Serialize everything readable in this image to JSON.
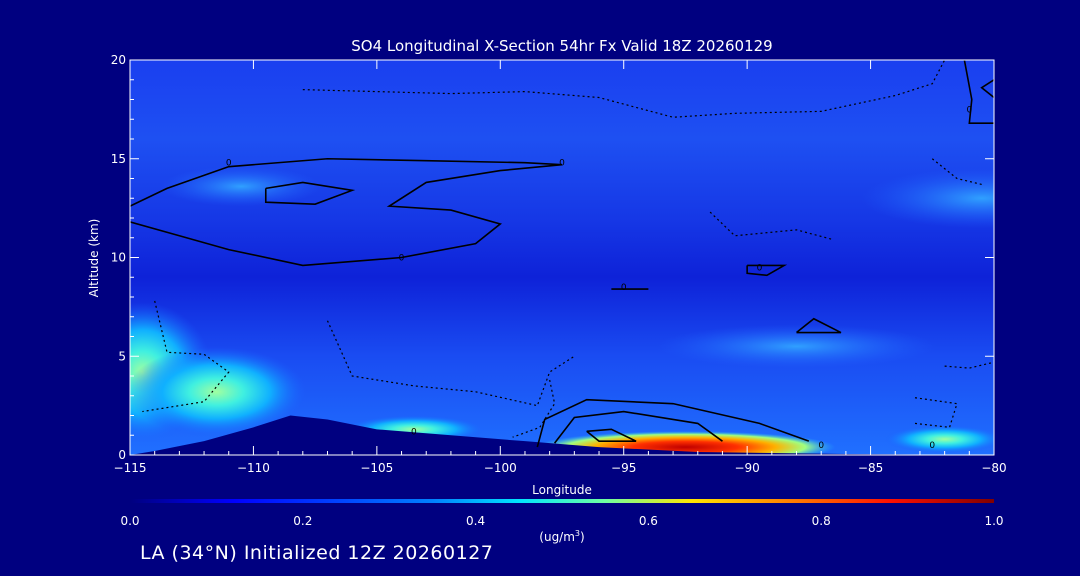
{
  "chart_data": {
    "type": "heatmap",
    "title": "SO4 Longitudinal X-Section 54hr  Fx Valid 18Z 20260129",
    "xlabel": "Longitude",
    "ylabel": "Altitude (km)",
    "xlim": [
      -115,
      -80
    ],
    "ylim": [
      0,
      20
    ],
    "x_ticks": [
      -115,
      -110,
      -105,
      -100,
      -95,
      -90,
      -85,
      -80
    ],
    "x_tick_labels": [
      "−115",
      "−110",
      "−105",
      "−100",
      "−95",
      "−90",
      "−85",
      "−80"
    ],
    "y_ticks": [
      0,
      5,
      10,
      15,
      20
    ],
    "y_tick_labels": [
      "0",
      "5",
      "10",
      "15",
      "20"
    ],
    "colorbar": {
      "min": 0.0,
      "max": 1.0,
      "ticks": [
        0.0,
        0.2,
        0.4,
        0.6,
        0.8,
        1.0
      ],
      "tick_labels": [
        "0.0",
        "0.2",
        "0.4",
        "0.6",
        "0.8",
        "1.0"
      ],
      "unit": "(ug/m",
      "unit_sup": "3",
      "unit_close": ")"
    },
    "grid": false,
    "contour_labels": [
      {
        "lon": -111.0,
        "alt": 14.8,
        "text": "0"
      },
      {
        "lon": -97.5,
        "alt": 14.8,
        "text": "0"
      },
      {
        "lon": -104.0,
        "alt": 10.0,
        "text": "0"
      },
      {
        "lon": -103.5,
        "alt": 1.2,
        "text": "0"
      },
      {
        "lon": -89.5,
        "alt": 9.5,
        "text": "0"
      },
      {
        "lon": -95.0,
        "alt": 8.5,
        "text": "0"
      },
      {
        "lon": -81.0,
        "alt": 17.5,
        "text": "0"
      },
      {
        "lon": -87.0,
        "alt": 0.5,
        "text": "0"
      },
      {
        "lon": -82.5,
        "alt": 0.5,
        "text": "0"
      }
    ],
    "terrain": [
      {
        "lon": -115,
        "alt": 0.0
      },
      {
        "lon": -114,
        "alt": 0.2
      },
      {
        "lon": -112,
        "alt": 0.7
      },
      {
        "lon": -110,
        "alt": 1.4
      },
      {
        "lon": -108.5,
        "alt": 2.0
      },
      {
        "lon": -107,
        "alt": 1.8
      },
      {
        "lon": -105,
        "alt": 1.3
      },
      {
        "lon": -102,
        "alt": 1.0
      },
      {
        "lon": -99,
        "alt": 0.7
      },
      {
        "lon": -96,
        "alt": 0.4
      },
      {
        "lon": -92,
        "alt": 0.15
      },
      {
        "lon": -86,
        "alt": 0.05
      },
      {
        "lon": -80,
        "alt": 0.0
      }
    ]
  },
  "footer": {
    "text": "LA (34°N) Initialized 12Z 20260127"
  }
}
